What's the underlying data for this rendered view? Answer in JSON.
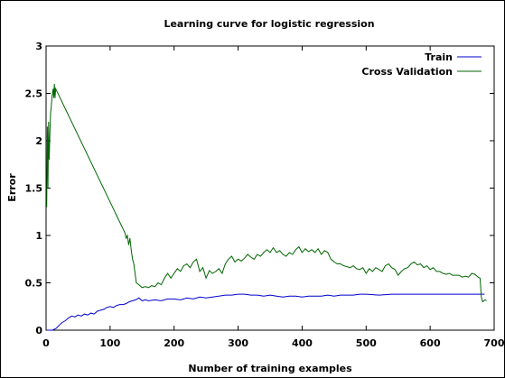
{
  "chart_data": {
    "type": "line",
    "title": "Learning curve for logistic regression",
    "xlabel": "Number of training examples",
    "ylabel": "Error",
    "xlim": [
      0,
      700
    ],
    "ylim": [
      0,
      3
    ],
    "xticks": [
      "0",
      "100",
      "200",
      "300",
      "400",
      "500",
      "600",
      "700"
    ],
    "yticks": [
      "0",
      "0.5",
      "1",
      "1.5",
      "2",
      "2.5",
      "3"
    ],
    "legend_position": "top-right",
    "grid": false,
    "series": [
      {
        "name": "Train",
        "color": "#0000cc",
        "points": [
          [
            1,
            0
          ],
          [
            10,
            0
          ],
          [
            16,
            0.02
          ],
          [
            20,
            0.05
          ],
          [
            25,
            0.08
          ],
          [
            30,
            0.1
          ],
          [
            35,
            0.13
          ],
          [
            40,
            0.15
          ],
          [
            45,
            0.14
          ],
          [
            50,
            0.16
          ],
          [
            55,
            0.15
          ],
          [
            60,
            0.17
          ],
          [
            65,
            0.16
          ],
          [
            70,
            0.18
          ],
          [
            75,
            0.17
          ],
          [
            80,
            0.2
          ],
          [
            85,
            0.21
          ],
          [
            90,
            0.22
          ],
          [
            95,
            0.24
          ],
          [
            100,
            0.25
          ],
          [
            105,
            0.24
          ],
          [
            110,
            0.26
          ],
          [
            115,
            0.27
          ],
          [
            120,
            0.27
          ],
          [
            125,
            0.28
          ],
          [
            130,
            0.3
          ],
          [
            135,
            0.31
          ],
          [
            140,
            0.32
          ],
          [
            145,
            0.34
          ],
          [
            150,
            0.31
          ],
          [
            155,
            0.32
          ],
          [
            160,
            0.31
          ],
          [
            170,
            0.32
          ],
          [
            180,
            0.31
          ],
          [
            190,
            0.33
          ],
          [
            200,
            0.33
          ],
          [
            210,
            0.32
          ],
          [
            220,
            0.34
          ],
          [
            230,
            0.33
          ],
          [
            240,
            0.35
          ],
          [
            250,
            0.34
          ],
          [
            260,
            0.35
          ],
          [
            270,
            0.36
          ],
          [
            280,
            0.37
          ],
          [
            290,
            0.37
          ],
          [
            300,
            0.38
          ],
          [
            310,
            0.38
          ],
          [
            320,
            0.37
          ],
          [
            330,
            0.37
          ],
          [
            340,
            0.36
          ],
          [
            350,
            0.37
          ],
          [
            360,
            0.36
          ],
          [
            370,
            0.35
          ],
          [
            380,
            0.36
          ],
          [
            390,
            0.36
          ],
          [
            400,
            0.35
          ],
          [
            410,
            0.36
          ],
          [
            420,
            0.36
          ],
          [
            430,
            0.36
          ],
          [
            440,
            0.37
          ],
          [
            450,
            0.36
          ],
          [
            460,
            0.37
          ],
          [
            470,
            0.37
          ],
          [
            480,
            0.37
          ],
          [
            490,
            0.38
          ],
          [
            500,
            0.38
          ],
          [
            520,
            0.37
          ],
          [
            540,
            0.38
          ],
          [
            560,
            0.38
          ],
          [
            580,
            0.38
          ],
          [
            600,
            0.38
          ],
          [
            620,
            0.38
          ],
          [
            640,
            0.38
          ],
          [
            660,
            0.38
          ],
          [
            680,
            0.38
          ],
          [
            685,
            0.38
          ]
        ]
      },
      {
        "name": "Cross Validation",
        "color": "#006600",
        "points": [
          [
            1,
            1.3
          ],
          [
            2,
            2.15
          ],
          [
            3,
            1.5
          ],
          [
            4,
            2.2
          ],
          [
            5,
            1.8
          ],
          [
            6,
            2.1
          ],
          [
            7,
            2.3
          ],
          [
            8,
            2.35
          ],
          [
            9,
            2.45
          ],
          [
            10,
            2.5
          ],
          [
            11,
            2.55
          ],
          [
            12,
            2.45
          ],
          [
            13,
            2.6
          ],
          [
            14,
            2.45
          ],
          [
            15,
            2.55
          ],
          [
            123,
            1.03
          ],
          [
            125,
            0.97
          ],
          [
            127,
            1.0
          ],
          [
            129,
            0.9
          ],
          [
            131,
            0.97
          ],
          [
            133,
            0.85
          ],
          [
            135,
            0.75
          ],
          [
            137,
            0.7
          ],
          [
            139,
            0.6
          ],
          [
            141,
            0.5
          ],
          [
            145,
            0.48
          ],
          [
            150,
            0.45
          ],
          [
            155,
            0.46
          ],
          [
            160,
            0.45
          ],
          [
            165,
            0.47
          ],
          [
            170,
            0.46
          ],
          [
            175,
            0.5
          ],
          [
            180,
            0.48
          ],
          [
            185,
            0.55
          ],
          [
            190,
            0.6
          ],
          [
            195,
            0.55
          ],
          [
            200,
            0.6
          ],
          [
            205,
            0.65
          ],
          [
            210,
            0.62
          ],
          [
            215,
            0.68
          ],
          [
            220,
            0.7
          ],
          [
            225,
            0.66
          ],
          [
            230,
            0.72
          ],
          [
            235,
            0.75
          ],
          [
            240,
            0.62
          ],
          [
            245,
            0.66
          ],
          [
            250,
            0.55
          ],
          [
            255,
            0.63
          ],
          [
            260,
            0.6
          ],
          [
            265,
            0.62
          ],
          [
            270,
            0.65
          ],
          [
            275,
            0.6
          ],
          [
            280,
            0.7
          ],
          [
            285,
            0.75
          ],
          [
            290,
            0.78
          ],
          [
            295,
            0.72
          ],
          [
            300,
            0.75
          ],
          [
            305,
            0.73
          ],
          [
            310,
            0.76
          ],
          [
            315,
            0.8
          ],
          [
            320,
            0.77
          ],
          [
            325,
            0.75
          ],
          [
            330,
            0.8
          ],
          [
            335,
            0.78
          ],
          [
            340,
            0.82
          ],
          [
            345,
            0.85
          ],
          [
            350,
            0.82
          ],
          [
            355,
            0.87
          ],
          [
            360,
            0.82
          ],
          [
            365,
            0.84
          ],
          [
            370,
            0.8
          ],
          [
            375,
            0.78
          ],
          [
            380,
            0.82
          ],
          [
            385,
            0.8
          ],
          [
            390,
            0.85
          ],
          [
            395,
            0.88
          ],
          [
            400,
            0.82
          ],
          [
            405,
            0.86
          ],
          [
            410,
            0.83
          ],
          [
            415,
            0.85
          ],
          [
            420,
            0.82
          ],
          [
            425,
            0.86
          ],
          [
            430,
            0.8
          ],
          [
            435,
            0.84
          ],
          [
            440,
            0.82
          ],
          [
            445,
            0.75
          ],
          [
            450,
            0.72
          ],
          [
            455,
            0.7
          ],
          [
            460,
            0.7
          ],
          [
            465,
            0.68
          ],
          [
            470,
            0.67
          ],
          [
            475,
            0.66
          ],
          [
            480,
            0.68
          ],
          [
            485,
            0.65
          ],
          [
            490,
            0.64
          ],
          [
            495,
            0.66
          ],
          [
            500,
            0.6
          ],
          [
            505,
            0.65
          ],
          [
            510,
            0.62
          ],
          [
            515,
            0.66
          ],
          [
            520,
            0.64
          ],
          [
            525,
            0.62
          ],
          [
            530,
            0.68
          ],
          [
            535,
            0.7
          ],
          [
            540,
            0.66
          ],
          [
            545,
            0.64
          ],
          [
            550,
            0.58
          ],
          [
            555,
            0.62
          ],
          [
            560,
            0.65
          ],
          [
            565,
            0.66
          ],
          [
            570,
            0.7
          ],
          [
            575,
            0.72
          ],
          [
            580,
            0.69
          ],
          [
            585,
            0.7
          ],
          [
            590,
            0.66
          ],
          [
            595,
            0.68
          ],
          [
            600,
            0.64
          ],
          [
            605,
            0.66
          ],
          [
            610,
            0.62
          ],
          [
            615,
            0.62
          ],
          [
            620,
            0.6
          ],
          [
            625,
            0.59
          ],
          [
            630,
            0.6
          ],
          [
            635,
            0.58
          ],
          [
            640,
            0.58
          ],
          [
            645,
            0.58
          ],
          [
            650,
            0.56
          ],
          [
            655,
            0.57
          ],
          [
            660,
            0.56
          ],
          [
            665,
            0.6
          ],
          [
            670,
            0.59
          ],
          [
            675,
            0.56
          ],
          [
            678,
            0.55
          ],
          [
            680,
            0.35
          ],
          [
            682,
            0.3
          ],
          [
            684,
            0.31
          ],
          [
            686,
            0.32
          ],
          [
            688,
            0.31
          ]
        ]
      }
    ]
  }
}
